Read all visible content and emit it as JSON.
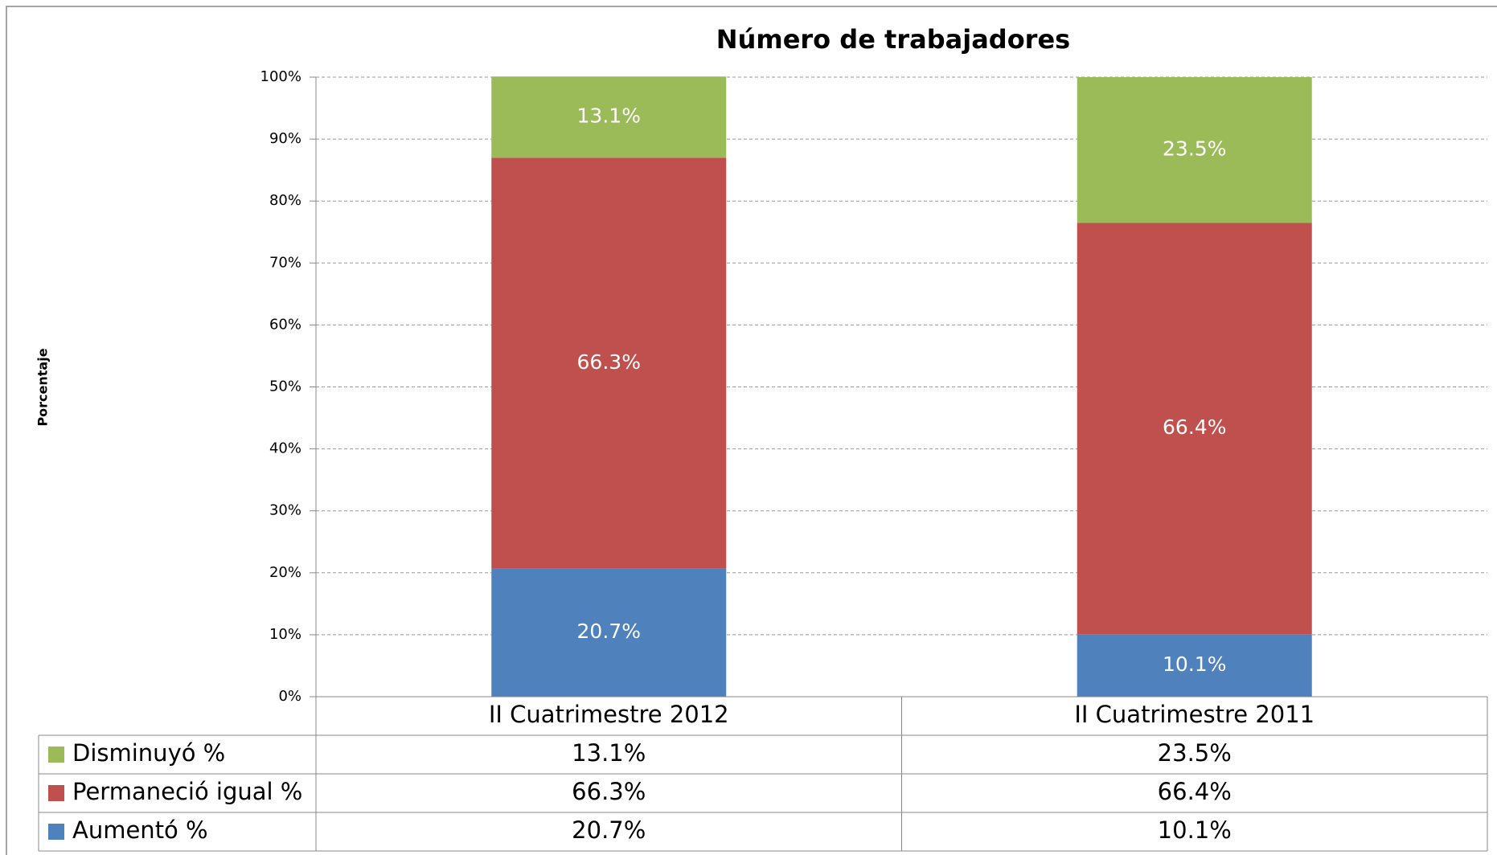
{
  "chart_data": {
    "type": "stacked_bar",
    "title": "Número de trabajadores",
    "y_label": "Porcentaje",
    "categories": [
      "II Cuatrimestre 2012",
      "II Cuatrimestre 2011"
    ],
    "series": [
      {
        "name": "Aumentó %",
        "color": "#4f81bd",
        "values": [
          20.7,
          10.1
        ],
        "value_labels": [
          "20.7%",
          "10.1%"
        ]
      },
      {
        "name": "Permaneció igual %",
        "color": "#c0504d",
        "values": [
          66.3,
          66.4
        ],
        "value_labels": [
          "66.3%",
          "66.4%"
        ]
      },
      {
        "name": "Disminuyó %",
        "color": "#9bbb59",
        "values": [
          13.1,
          23.5
        ],
        "value_labels": [
          "13.1%",
          "23.5%"
        ]
      }
    ],
    "ylim": [
      0,
      100
    ],
    "yticks": [
      {
        "value": 0,
        "label": "0%"
      },
      {
        "value": 10,
        "label": "10%"
      },
      {
        "value": 20,
        "label": "20%"
      },
      {
        "value": 30,
        "label": "30%"
      },
      {
        "value": 40,
        "label": "40%"
      },
      {
        "value": 50,
        "label": "50%"
      },
      {
        "value": 60,
        "label": "60%"
      },
      {
        "value": 70,
        "label": "70%"
      },
      {
        "value": 80,
        "label": "80%"
      },
      {
        "value": 90,
        "label": "90%"
      },
      {
        "value": 100,
        "label": "100%"
      }
    ],
    "grid": true
  }
}
